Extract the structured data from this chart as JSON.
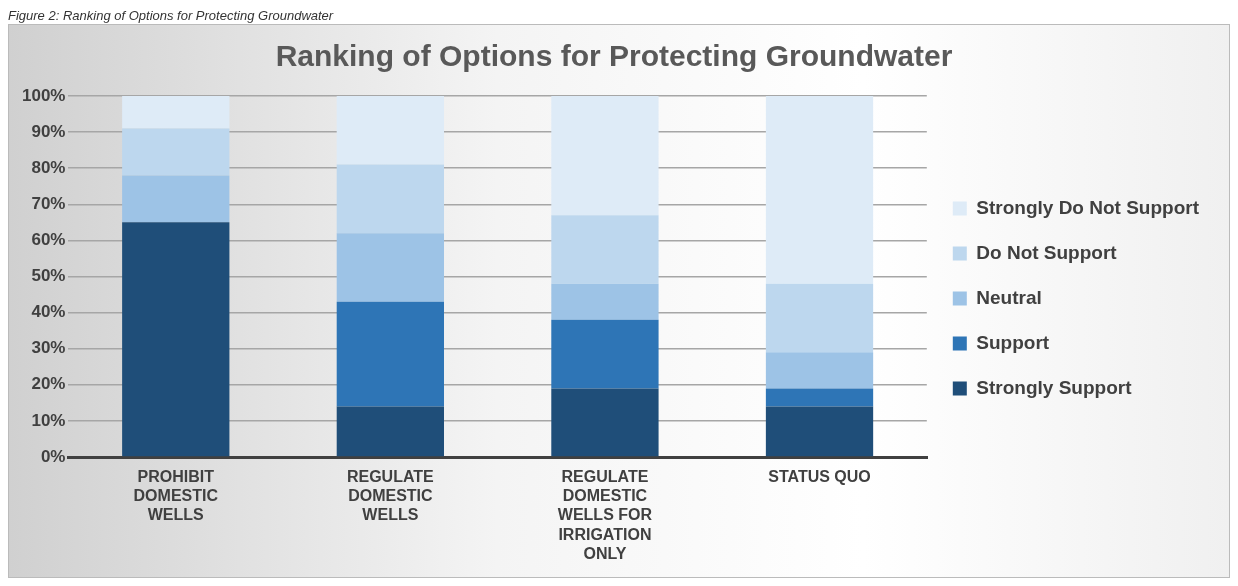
{
  "chart_data": {
    "type": "bar",
    "title": "Ranking of Options for Protecting Groundwater",
    "annotations": [
      "Figure 2: Ranking of Options for Protecting Groundwater"
    ],
    "categories": [
      "PROHIBIT DOMESTIC WELLS",
      "REGULATE DOMESTIC WELLS",
      "REGULATE DOMESTIC WELLS FOR IRRIGATION ONLY",
      "STATUS QUO"
    ],
    "stacked": true,
    "series": [
      {
        "name": "Strongly Support",
        "color": "#1f4e79",
        "values": [
          65,
          14,
          19,
          14
        ]
      },
      {
        "name": "Support",
        "color": "#2e75b6",
        "values": [
          0,
          29,
          19,
          5
        ]
      },
      {
        "name": "Neutral",
        "color": "#9dc3e6",
        "values": [
          13,
          19,
          10,
          10
        ]
      },
      {
        "name": "Do Not Support",
        "color": "#bdd7ee",
        "values": [
          13,
          19,
          19,
          19
        ]
      },
      {
        "name": "Strongly Do Not Support",
        "color": "#deebf7",
        "values": [
          9,
          19,
          33,
          52
        ]
      }
    ],
    "ylim": [
      0,
      100
    ],
    "yticks": [
      {
        "value": 0,
        "label": "0%"
      },
      {
        "value": 10,
        "label": "10%"
      },
      {
        "value": 20,
        "label": "20%"
      },
      {
        "value": 30,
        "label": "30%"
      },
      {
        "value": 40,
        "label": "40%"
      },
      {
        "value": 50,
        "label": "50%"
      },
      {
        "value": 60,
        "label": "60%"
      },
      {
        "value": 70,
        "label": "70%"
      },
      {
        "value": 80,
        "label": "80%"
      },
      {
        "value": 90,
        "label": "90%"
      },
      {
        "value": 100,
        "label": "100%"
      }
    ],
    "grid": "y",
    "legend": "right"
  }
}
